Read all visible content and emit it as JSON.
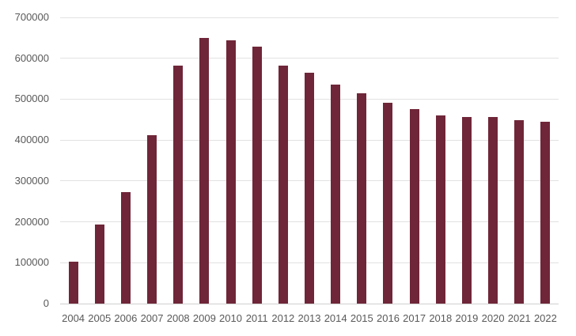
{
  "chart_data": {
    "type": "bar",
    "title": "",
    "xlabel": "",
    "ylabel": "",
    "categories": [
      "2004",
      "2005",
      "2006",
      "2007",
      "2008",
      "2009",
      "2010",
      "2011",
      "2012",
      "2013",
      "2014",
      "2015",
      "2016",
      "2017",
      "2018",
      "2019",
      "2020",
      "2021",
      "2022"
    ],
    "values": [
      103000,
      194000,
      273000,
      412000,
      583000,
      650000,
      643000,
      628000,
      583000,
      564000,
      536000,
      514000,
      491000,
      476000,
      460000,
      457000,
      456000,
      448000,
      444000
    ],
    "ytick_labels": [
      "0",
      "100000",
      "200000",
      "300000",
      "400000",
      "500000",
      "600000",
      "700000"
    ],
    "ylim": [
      0,
      700000
    ],
    "ytick_interval": 100000,
    "grid": true,
    "legend": "none",
    "bar_color": "#6F2638",
    "gridline_color": "#E2E2E2",
    "axis_line_color": "#CFCFCF",
    "tick_label_color": "#595959",
    "background_color": "#FFFFFF"
  }
}
